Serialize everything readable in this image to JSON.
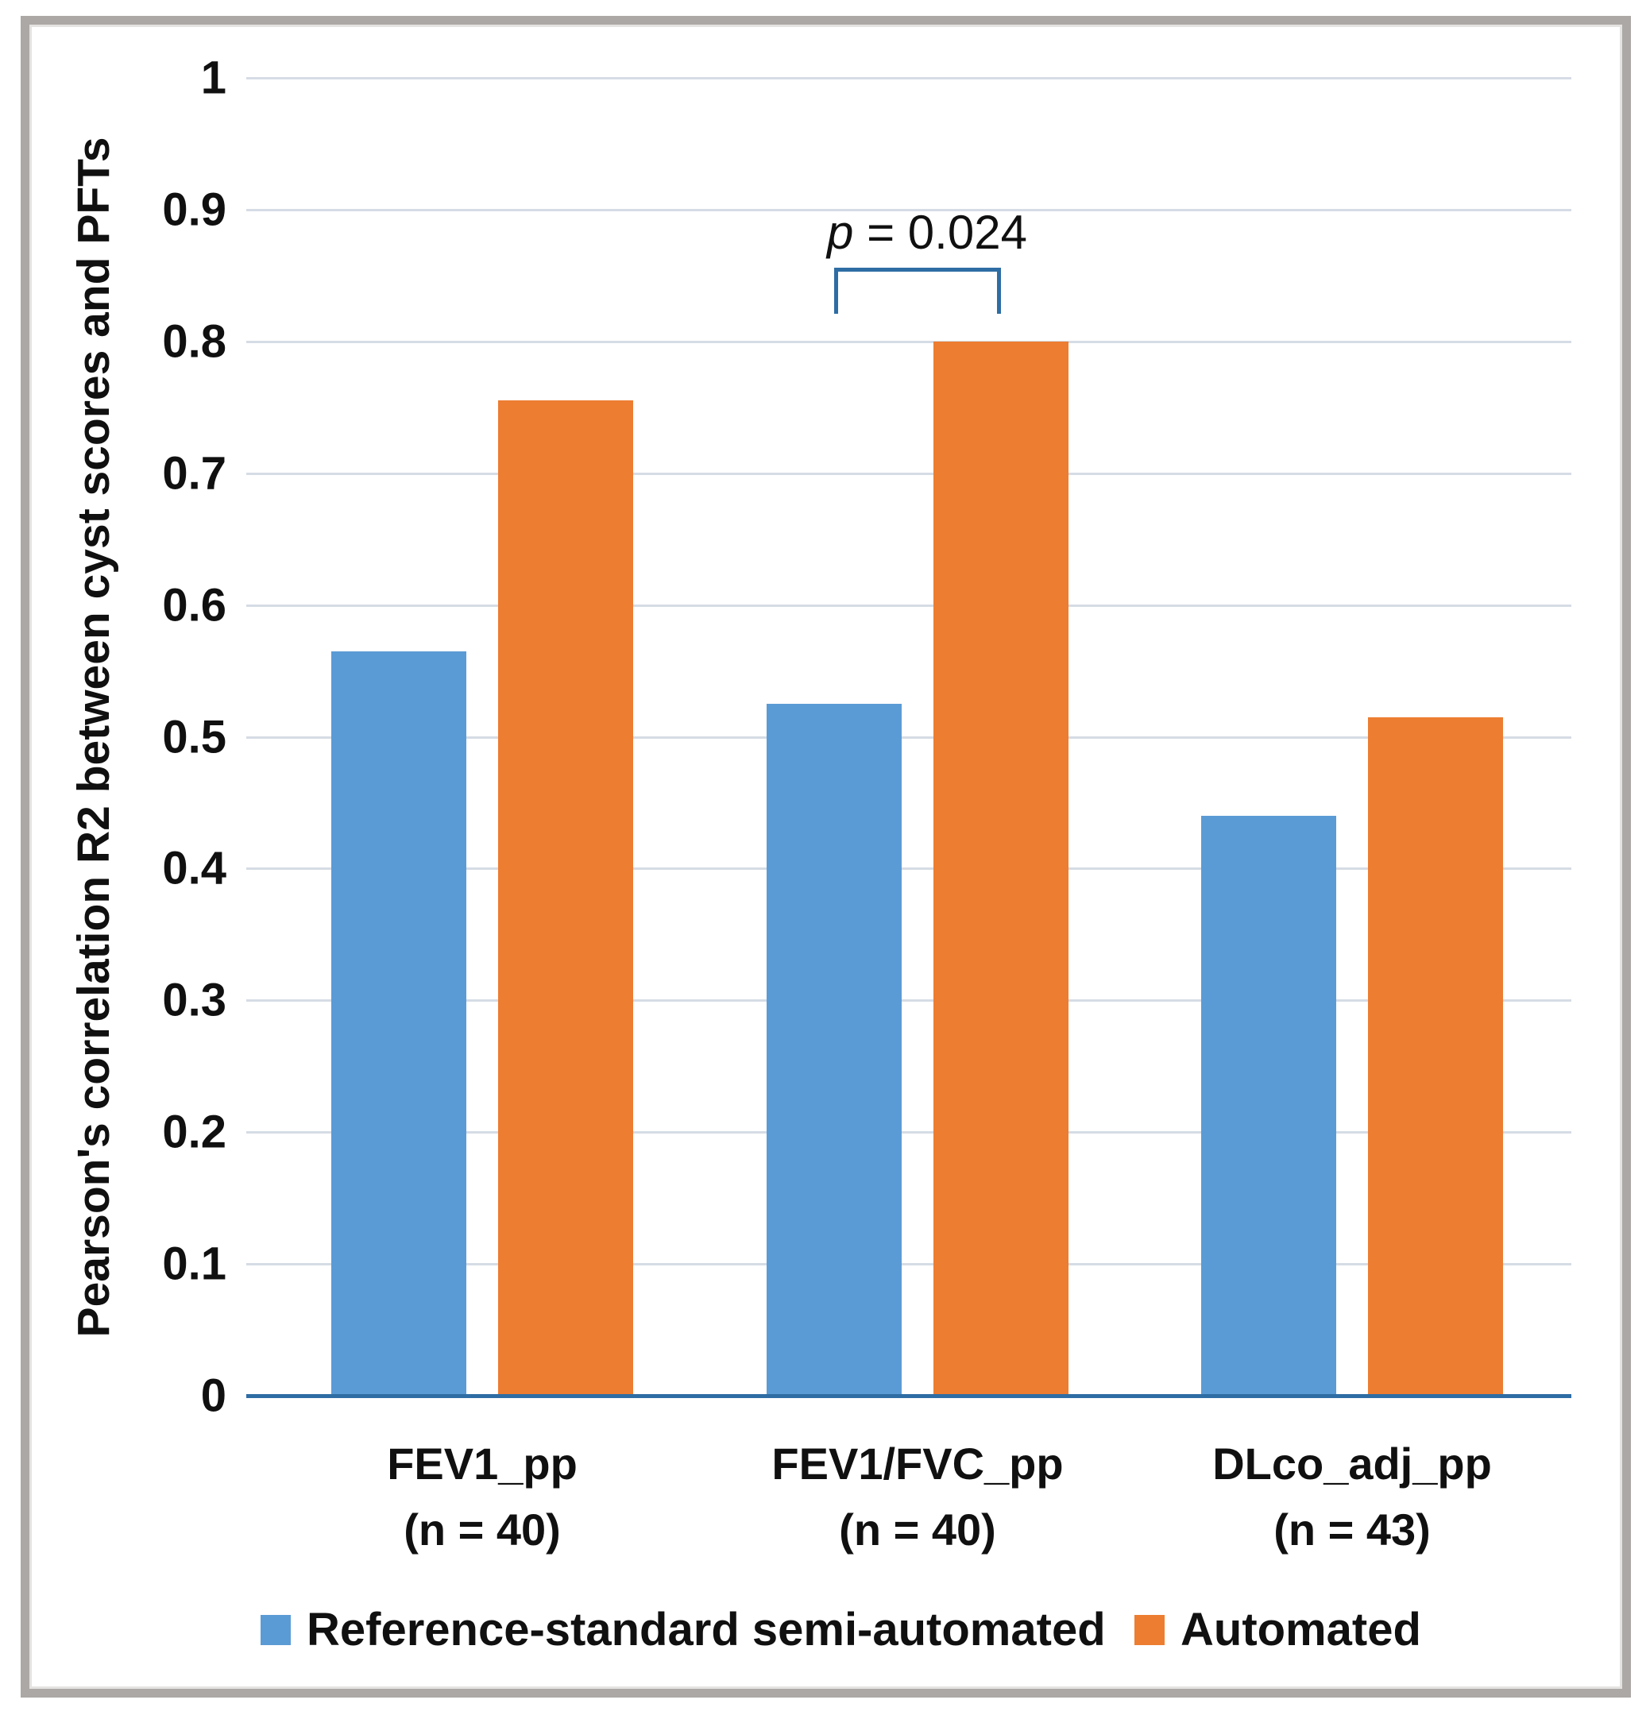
{
  "chart_data": {
    "type": "bar",
    "title": "",
    "xlabel": "",
    "ylabel": "Pearson's correlation R2 between cyst scores and PFTs",
    "ylim": [
      0,
      1
    ],
    "yticks": [
      "0",
      "0.1",
      "0.2",
      "0.3",
      "0.4",
      "0.5",
      "0.6",
      "0.7",
      "0.8",
      "0.9",
      "1"
    ],
    "grid": "horizontal",
    "legend_position": "bottom",
    "categories": [
      "FEV1_pp",
      "FEV1/FVC_pp",
      "DLco_adj_pp"
    ],
    "category_subs": [
      "(n = 40)",
      "(n = 40)",
      "(n = 43)"
    ],
    "series": [
      {
        "name": "Reference-standard semi-automated",
        "color": "#5B9BD5",
        "values": [
          0.565,
          0.525,
          0.44
        ]
      },
      {
        "name": "Automated",
        "color": "#ED7D31",
        "values": [
          0.755,
          0.8,
          0.515
        ]
      }
    ],
    "annotation": {
      "p_symbol": "p",
      "p_rest": " = 0.024",
      "category_index": 1,
      "bracket_color": "#2E6DA4"
    }
  },
  "colors": {
    "axis_line": "#2E6DA4",
    "gridline": "#D6DCE5",
    "frame": "#ABA8A5",
    "text": "#101010",
    "background": "#FFFFFF"
  }
}
